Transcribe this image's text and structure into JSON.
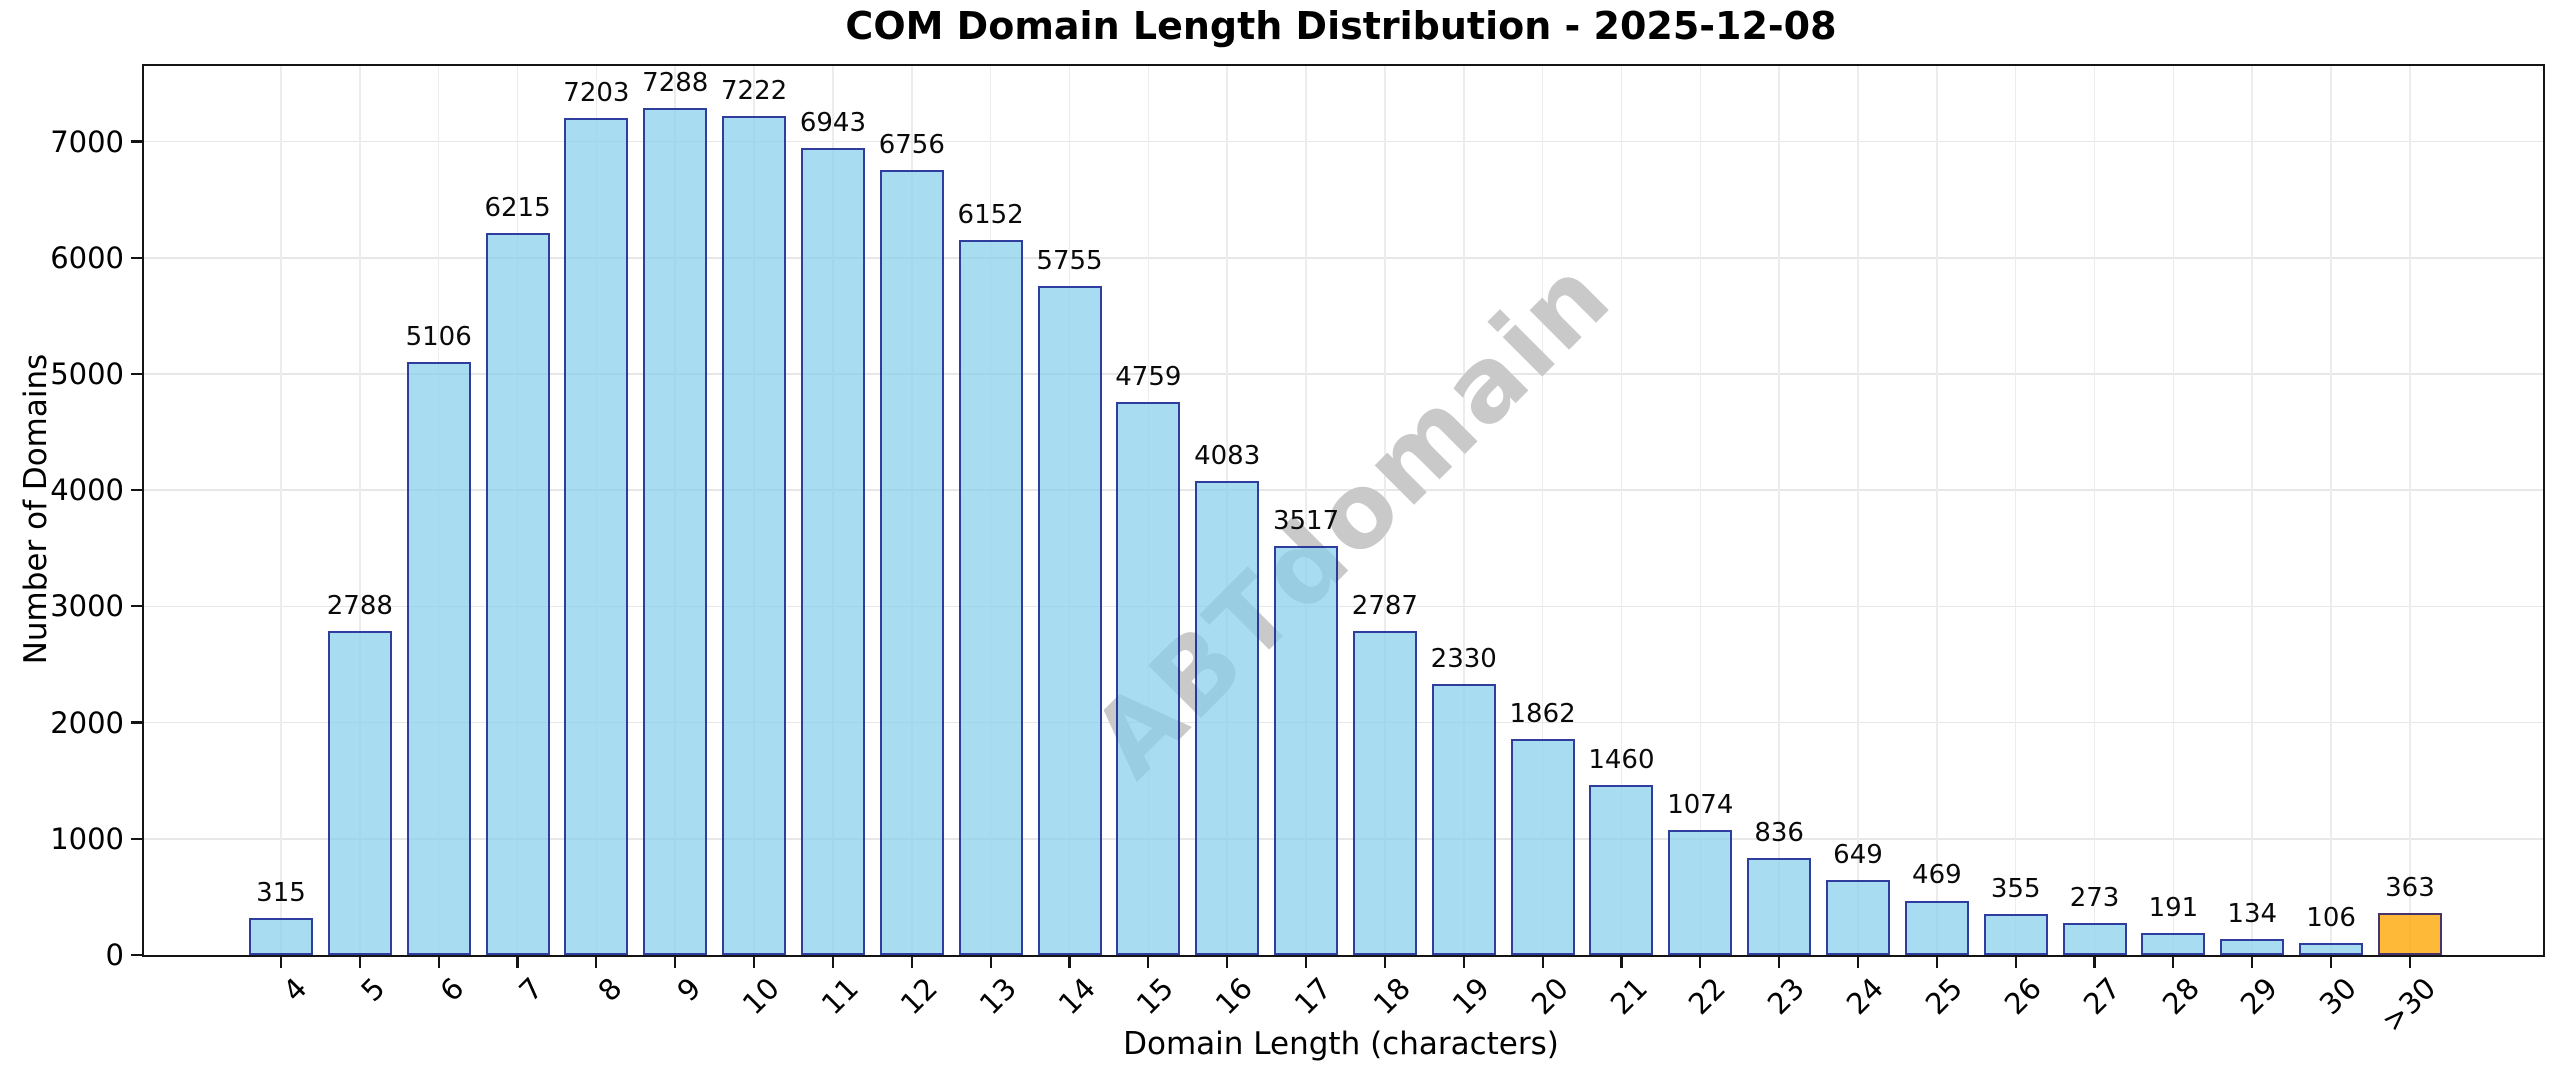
{
  "title": "COM Domain Length Distribution - 2025-12-08",
  "watermark": "ABTdomain",
  "chart_data": {
    "type": "bar",
    "title": "COM Domain Length Distribution - 2025-12-08",
    "xlabel": "Domain Length (characters)",
    "ylabel": "Number of Domains",
    "categories": [
      "4",
      "5",
      "6",
      "7",
      "8",
      "9",
      "10",
      "11",
      "12",
      "13",
      "14",
      "15",
      "16",
      "17",
      "18",
      "19",
      "20",
      "21",
      "22",
      "23",
      "24",
      "25",
      "26",
      "27",
      "28",
      "29",
      "30",
      ">30"
    ],
    "values": [
      315,
      2788,
      5106,
      6215,
      7203,
      7288,
      7222,
      6943,
      6756,
      6152,
      5755,
      4759,
      4083,
      3517,
      2787,
      2330,
      1862,
      1460,
      1074,
      836,
      649,
      469,
      355,
      273,
      191,
      134,
      106,
      363
    ],
    "value_labels_shown": true,
    "ylim": [
      0,
      7650
    ],
    "yticks": [
      0,
      1000,
      2000,
      3000,
      4000,
      5000,
      6000,
      7000
    ],
    "grid": true,
    "legend_position": "none",
    "bar_fill_hex": "#87CEEB",
    "bar_edge_hex": "#000080",
    "bar_alpha": 0.72,
    "highlight_index": 27,
    "highlight_fill_hex": "#FFA500",
    "highlight_alpha": 0.78,
    "watermark_color_hex": "#c9c9c9"
  }
}
